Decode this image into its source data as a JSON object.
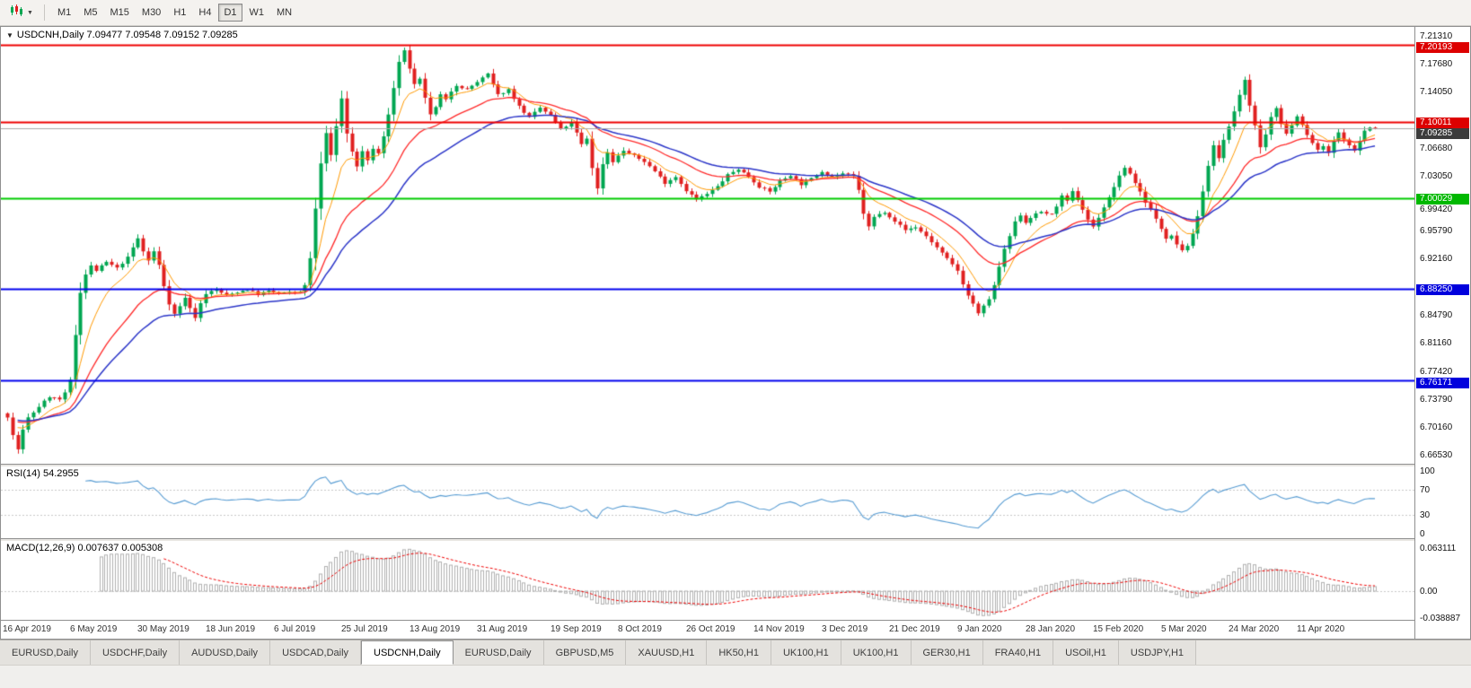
{
  "toolbar": {
    "timeframes": [
      "M1",
      "M5",
      "M15",
      "M30",
      "H1",
      "H4",
      "D1",
      "W1",
      "MN"
    ],
    "active_timeframe": "D1"
  },
  "chart": {
    "symbol_title": "USDCNH,Daily",
    "title_line": "USDCNH,Daily 7.09477 7.09548 7.09152 7.09285",
    "ohlc": {
      "open": "7.09477",
      "high": "7.09548",
      "low": "7.09152",
      "close": "7.09285"
    }
  },
  "rsi": {
    "label": "RSI(14) 54.2955",
    "period": 14,
    "value": "54.2955",
    "scale": [
      "100",
      "70",
      "30",
      "0"
    ],
    "level_lines": [
      70,
      30
    ]
  },
  "macd": {
    "label": "MACD(12,26,9) 0.007637 0.005308",
    "values": [
      "0.007637",
      "0.005308"
    ],
    "scale": [
      "0.063111",
      "0.00",
      "-0.038887"
    ]
  },
  "price_scale": {
    "regular": [
      "7.21310",
      "7.17680",
      "7.14050",
      "7.06680",
      "7.03050",
      "6.99420",
      "6.95790",
      "6.92160",
      "6.84790",
      "6.81160",
      "6.77420",
      "6.73790",
      "6.70160",
      "6.66530"
    ],
    "special": [
      {
        "value": "7.20193",
        "color": "#dd0000",
        "text": "#ffffff"
      },
      {
        "value": "7.10011",
        "color": "#dd0000",
        "text": "#ffffff"
      },
      {
        "value": "7.09285",
        "color": "#3c3c3c",
        "text": "#ffffff"
      },
      {
        "value": "7.00029",
        "color": "#00b800",
        "text": "#ffffff"
      },
      {
        "value": "6.88250",
        "color": "#0000dd",
        "text": "#ffffff"
      },
      {
        "value": "6.76171",
        "color": "#0000dd",
        "text": "#ffffff"
      }
    ]
  },
  "date_axis": [
    "16 Apr 2019",
    "6 May 2019",
    "30 May 2019",
    "18 Jun 2019",
    "6 Jul 2019",
    "25 Jul 2019",
    "13 Aug 2019",
    "31 Aug 2019",
    "19 Sep 2019",
    "8 Oct 2019",
    "26 Oct 2019",
    "14 Nov 2019",
    "3 Dec 2019",
    "21 Dec 2019",
    "9 Jan 2020",
    "28 Jan 2020",
    "15 Feb 2020",
    "5 Mar 2020",
    "24 Mar 2020",
    "11 Apr 2020"
  ],
  "tabs": {
    "active_index": 4,
    "items": [
      "EURUSD,Daily",
      "USDCHF,Daily",
      "AUDUSD,Daily",
      "USDCAD,Daily",
      "USDCNH,Daily",
      "EURUSD,Daily",
      "GBPUSD,M5",
      "XAUUSD,H1",
      "HK50,H1",
      "UK100,H1",
      "UK100,H1",
      "GER30,H1",
      "FRA40,H1",
      "USOil,H1",
      "USDJPY,H1"
    ]
  },
  "chart_data": {
    "type": "candlestick",
    "symbol": "USDCNH",
    "timeframe": "Daily",
    "days": 263,
    "price_range": [
      6.653,
      7.225
    ],
    "current_price": 7.09285,
    "up_color": "#00a651",
    "down_color": "#e02020",
    "hlines": [
      {
        "price": 7.20193,
        "color": "#ee0000",
        "width": 2
      },
      {
        "price": 7.10011,
        "color": "#ee0000",
        "width": 2
      },
      {
        "price": 7.00029,
        "color": "#00cc00",
        "width": 2
      },
      {
        "price": 6.8825,
        "color": "#0000ee",
        "width": 2
      },
      {
        "price": 6.76171,
        "color": "#0000ee",
        "width": 2
      }
    ],
    "current_price_line": {
      "price": 7.09285,
      "color": "#aaaaaa"
    },
    "ma_lines": [
      {
        "name": "fast-ma",
        "type": "ema",
        "period": 8,
        "color": "#ff9900",
        "width": 1
      },
      {
        "name": "mid-ma",
        "type": "ema",
        "period": 21,
        "color": "#ff2a2a",
        "width": 1.3
      },
      {
        "name": "slow-ma",
        "type": "ema",
        "period": 34,
        "color": "#2b35c8",
        "width": 1.5
      }
    ],
    "rsi_color": "#569bd2",
    "macd_style": {
      "fast": 12,
      "slow": 26,
      "signal": 9,
      "hist_color": "#b0b0b0",
      "signal_color": "#ee0000"
    },
    "date_ticks": [
      4,
      17,
      30,
      43,
      56,
      69,
      82,
      95,
      109,
      122,
      135,
      148,
      161,
      174,
      187,
      200,
      213,
      226,
      239,
      252
    ],
    "price_path": [
      [
        0,
        6.715
      ],
      [
        1,
        6.69
      ],
      [
        2,
        6.672
      ],
      [
        3,
        6.697
      ],
      [
        4,
        6.713
      ],
      [
        6,
        6.728
      ],
      [
        8,
        6.741
      ],
      [
        10,
        6.737
      ],
      [
        11,
        6.745
      ],
      [
        12,
        6.762
      ],
      [
        13,
        6.822
      ],
      [
        14,
        6.878
      ],
      [
        15,
        6.901
      ],
      [
        16,
        6.912
      ],
      [
        17,
        6.906
      ],
      [
        19,
        6.917
      ],
      [
        21,
        6.909
      ],
      [
        23,
        6.923
      ],
      [
        24,
        6.936
      ],
      [
        25,
        6.948
      ],
      [
        26,
        6.931
      ],
      [
        27,
        6.919
      ],
      [
        28,
        6.931
      ],
      [
        29,
        6.913
      ],
      [
        30,
        6.886
      ],
      [
        31,
        6.863
      ],
      [
        32,
        6.849
      ],
      [
        33,
        6.859
      ],
      [
        34,
        6.871
      ],
      [
        35,
        6.856
      ],
      [
        36,
        6.845
      ],
      [
        37,
        6.863
      ],
      [
        38,
        6.876
      ],
      [
        40,
        6.881
      ],
      [
        42,
        6.873
      ],
      [
        44,
        6.878
      ],
      [
        46,
        6.881
      ],
      [
        48,
        6.875
      ],
      [
        50,
        6.879
      ],
      [
        52,
        6.876
      ],
      [
        54,
        6.877
      ],
      [
        56,
        6.879
      ],
      [
        57,
        6.886
      ],
      [
        58,
        6.922
      ],
      [
        59,
        6.987
      ],
      [
        60,
        7.046
      ],
      [
        61,
        7.086
      ],
      [
        62,
        7.056
      ],
      [
        63,
        7.096
      ],
      [
        64,
        7.131
      ],
      [
        65,
        7.086
      ],
      [
        66,
        7.061
      ],
      [
        67,
        7.043
      ],
      [
        68,
        7.061
      ],
      [
        69,
        7.049
      ],
      [
        70,
        7.066
      ],
      [
        71,
        7.059
      ],
      [
        72,
        7.081
      ],
      [
        73,
        7.111
      ],
      [
        74,
        7.146
      ],
      [
        75,
        7.179
      ],
      [
        76,
        7.193
      ],
      [
        77,
        7.171
      ],
      [
        78,
        7.149
      ],
      [
        79,
        7.156
      ],
      [
        80,
        7.131
      ],
      [
        81,
        7.111
      ],
      [
        82,
        7.119
      ],
      [
        83,
        7.136
      ],
      [
        84,
        7.129
      ],
      [
        85,
        7.141
      ],
      [
        86,
        7.149
      ],
      [
        88,
        7.143
      ],
      [
        90,
        7.153
      ],
      [
        92,
        7.163
      ],
      [
        93,
        7.149
      ],
      [
        94,
        7.136
      ],
      [
        96,
        7.143
      ],
      [
        98,
        7.121
      ],
      [
        100,
        7.106
      ],
      [
        102,
        7.119
      ],
      [
        104,
        7.109
      ],
      [
        106,
        7.091
      ],
      [
        108,
        7.099
      ],
      [
        109,
        7.086
      ],
      [
        110,
        7.071
      ],
      [
        111,
        7.079
      ],
      [
        112,
        7.041
      ],
      [
        113,
        7.013
      ],
      [
        114,
        7.046
      ],
      [
        115,
        7.061
      ],
      [
        116,
        7.049
      ],
      [
        118,
        7.063
      ],
      [
        120,
        7.056
      ],
      [
        122,
        7.049
      ],
      [
        124,
        7.036
      ],
      [
        126,
        7.021
      ],
      [
        128,
        7.029
      ],
      [
        130,
        7.011
      ],
      [
        132,
        6.999
      ],
      [
        134,
        7.006
      ],
      [
        136,
        7.016
      ],
      [
        138,
        7.031
      ],
      [
        140,
        7.039
      ],
      [
        142,
        7.029
      ],
      [
        144,
        7.016
      ],
      [
        146,
        7.009
      ],
      [
        148,
        7.023
      ],
      [
        150,
        7.031
      ],
      [
        152,
        7.019
      ],
      [
        154,
        7.026
      ],
      [
        156,
        7.036
      ],
      [
        158,
        7.029
      ],
      [
        160,
        7.033
      ],
      [
        162,
        7.029
      ],
      [
        163,
        7.011
      ],
      [
        164,
        6.981
      ],
      [
        165,
        6.963
      ],
      [
        166,
        6.976
      ],
      [
        168,
        6.983
      ],
      [
        170,
        6.971
      ],
      [
        172,
        6.959
      ],
      [
        174,
        6.963
      ],
      [
        176,
        6.951
      ],
      [
        178,
        6.936
      ],
      [
        180,
        6.921
      ],
      [
        182,
        6.906
      ],
      [
        183,
        6.889
      ],
      [
        184,
        6.873
      ],
      [
        185,
        6.863
      ],
      [
        186,
        6.849
      ],
      [
        187,
        6.859
      ],
      [
        188,
        6.869
      ],
      [
        189,
        6.886
      ],
      [
        190,
        6.911
      ],
      [
        191,
        6.933
      ],
      [
        192,
        6.951
      ],
      [
        193,
        6.969
      ],
      [
        194,
        6.979
      ],
      [
        195,
        6.969
      ],
      [
        196,
        6.976
      ],
      [
        198,
        6.983
      ],
      [
        200,
        6.979
      ],
      [
        201,
        6.991
      ],
      [
        202,
        7.003
      ],
      [
        203,
        6.996
      ],
      [
        204,
        7.009
      ],
      [
        205,
        6.999
      ],
      [
        206,
        6.986
      ],
      [
        207,
        6.973
      ],
      [
        208,
        6.963
      ],
      [
        209,
        6.976
      ],
      [
        210,
        6.989
      ],
      [
        211,
        7.001
      ],
      [
        212,
        7.016
      ],
      [
        213,
        7.029
      ],
      [
        214,
        7.041
      ],
      [
        215,
        7.033
      ],
      [
        216,
        7.021
      ],
      [
        217,
        7.009
      ],
      [
        218,
        6.996
      ],
      [
        219,
        6.986
      ],
      [
        220,
        6.973
      ],
      [
        221,
        6.961
      ],
      [
        222,
        6.949
      ],
      [
        223,
        6.953
      ],
      [
        224,
        6.941
      ],
      [
        225,
        6.933
      ],
      [
        226,
        6.939
      ],
      [
        227,
        6.953
      ],
      [
        228,
        6.976
      ],
      [
        229,
        7.011
      ],
      [
        230,
        7.043
      ],
      [
        231,
        7.069
      ],
      [
        232,
        7.053
      ],
      [
        233,
        7.076
      ],
      [
        234,
        7.096
      ],
      [
        235,
        7.113
      ],
      [
        236,
        7.136
      ],
      [
        237,
        7.156
      ],
      [
        238,
        7.123
      ],
      [
        239,
        7.096
      ],
      [
        240,
        7.066
      ],
      [
        241,
        7.083
      ],
      [
        242,
        7.106
      ],
      [
        243,
        7.119
      ],
      [
        244,
        7.099
      ],
      [
        245,
        7.086
      ],
      [
        246,
        7.096
      ],
      [
        247,
        7.109
      ],
      [
        248,
        7.096
      ],
      [
        249,
        7.083
      ],
      [
        250,
        7.073
      ],
      [
        251,
        7.063
      ],
      [
        252,
        7.069
      ],
      [
        253,
        7.059
      ],
      [
        254,
        7.076
      ],
      [
        255,
        7.086
      ],
      [
        256,
        7.079
      ],
      [
        257,
        7.069
      ],
      [
        258,
        7.063
      ],
      [
        259,
        7.076
      ],
      [
        260,
        7.089
      ],
      [
        261,
        7.093
      ],
      [
        262,
        7.09285
      ]
    ]
  }
}
